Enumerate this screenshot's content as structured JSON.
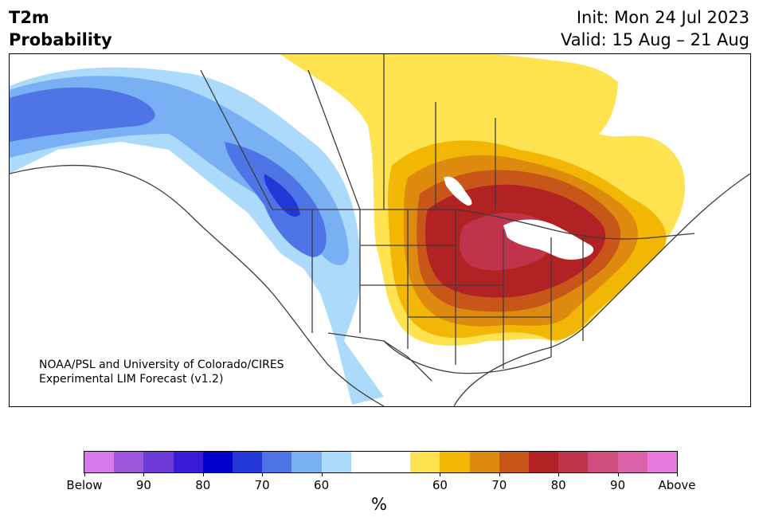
{
  "title": {
    "variable": "T2m",
    "metric": "Probability",
    "init": "Init: Mon 24 Jul 2023",
    "valid": "Valid: 15 Aug – 21 Aug"
  },
  "credit": {
    "line1": "NOAA/PSL and University of Colorado/CIRES",
    "line2": "Experimental LIM Forecast (v1.2)"
  },
  "colorbar": {
    "unit": "%",
    "colors": [
      "#d57aea",
      "#9d57de",
      "#6d3ad8",
      "#3a1bd6",
      "#0000cc",
      "#2336d6",
      "#4f74e6",
      "#78b0f3",
      "#acdafb",
      "#ffffff",
      "#ffffff",
      "#ffe24f",
      "#f2b705",
      "#dd8a0e",
      "#c85619",
      "#b22224",
      "#c0344b",
      "#d04e7e",
      "#dd61a8",
      "#e978df"
    ],
    "tick_labels": [
      "Below",
      "90",
      "80",
      "70",
      "60",
      "60",
      "70",
      "80",
      "90",
      "Above"
    ]
  },
  "map": {
    "region": "North America",
    "colors": {
      "land": "#ffffff",
      "outline": "#3c3c3c",
      "b60": "#acdafb",
      "b70": "#78b0f3",
      "b80": "#4f74e6",
      "b90": "#2336d6",
      "a60": "#ffe24f",
      "a70": "#f2b705",
      "a80": "#dd8a0e",
      "a90": "#c85619",
      "a100": "#b22224",
      "a110": "#c0344b"
    }
  }
}
